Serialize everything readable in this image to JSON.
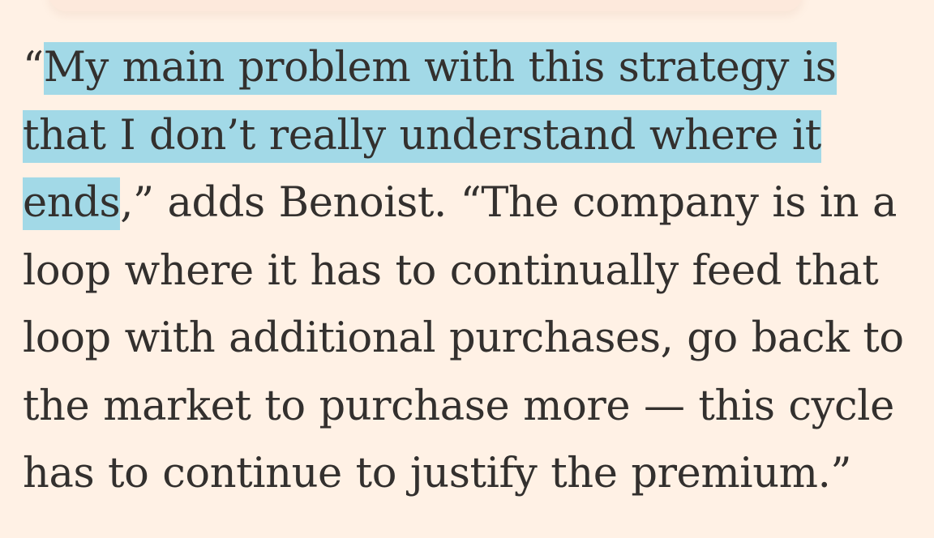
{
  "article": {
    "open_quote": "“",
    "selected_text": "My main problem with this strategy is that I don’t really understand where it ends",
    "continuation": ",” adds Benoist. “The company is in a loop where it has to continually feed that loop with additional purchases, go back to the market to purchase more — this cycle has to continue to justify the premium.”"
  },
  "colors": {
    "background": "#fff1e5",
    "text": "#33302e",
    "selection": "#a2d9e7"
  }
}
